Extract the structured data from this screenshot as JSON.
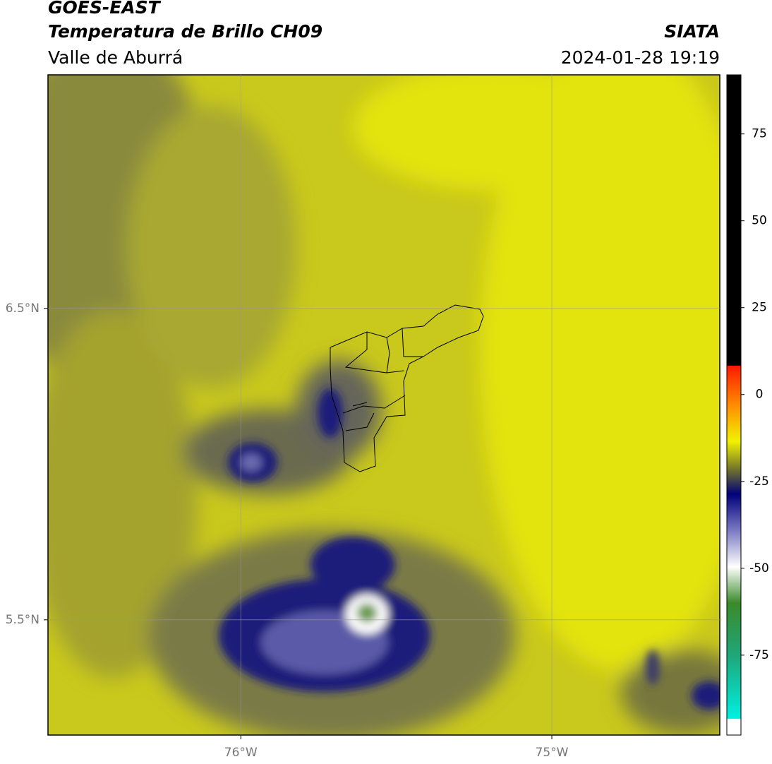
{
  "header": {
    "title": "GOES-EAST",
    "subtitle": "Temperatura de Brillo CH09",
    "region": "Valle de Aburrá",
    "source": "SIATA",
    "timestamp": "2024-01-28 19:19"
  },
  "map": {
    "xlim": [
      -76.62,
      -74.46
    ],
    "ylim": [
      5.13,
      7.25
    ],
    "xticks": [
      {
        "value": -76,
        "label": "76°W"
      },
      {
        "value": -75,
        "label": "75°W"
      }
    ],
    "yticks": [
      {
        "value": 5.5,
        "label": "5.5°N"
      },
      {
        "value": 6.5,
        "label": "6.5°N"
      }
    ],
    "grid": true
  },
  "colorbar": {
    "lim": [
      -98,
      92
    ],
    "ticks": [
      -75,
      -50,
      -25,
      0,
      25,
      50,
      75
    ]
  }
}
